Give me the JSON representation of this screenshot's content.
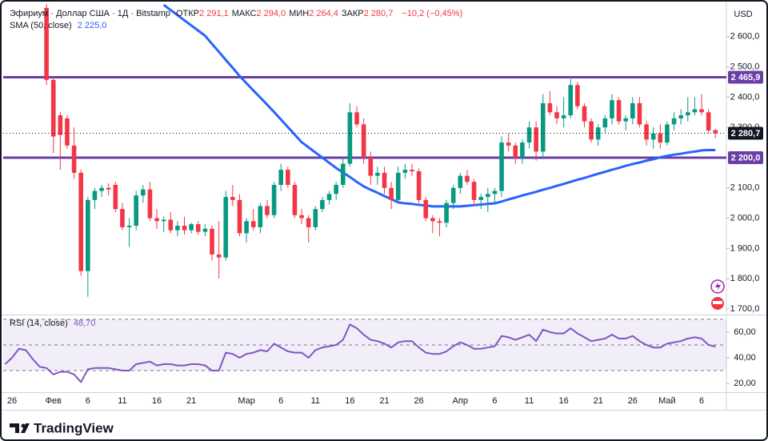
{
  "chart_data": {
    "type": "candlestick",
    "header": {
      "symbol": "Эфириум · Доллар США · 1Д · Bitstamp",
      "ohlc": [
        {
          "label": "ОТКР",
          "value": "2 291,1"
        },
        {
          "label": "МАКС",
          "value": "2 294,0"
        },
        {
          "label": "МИН",
          "value": "2 264,4"
        },
        {
          "label": "ЗАКР",
          "value": "2 280,7"
        }
      ],
      "change": "−10,2 (−0,45%)"
    },
    "currency": "USD",
    "brand": "TradingView",
    "categories": [
      null,
      "26",
      null,
      null,
      null,
      null,
      null,
      "Фев",
      null,
      null,
      null,
      null,
      "6",
      null,
      null,
      null,
      null,
      "11",
      null,
      null,
      null,
      null,
      "16",
      null,
      null,
      null,
      null,
      "21",
      null,
      null,
      null,
      null,
      null,
      null,
      null,
      "Мар",
      null,
      null,
      null,
      null,
      "6",
      null,
      null,
      null,
      null,
      "11",
      null,
      null,
      null,
      null,
      "16",
      null,
      null,
      null,
      null,
      "21",
      null,
      null,
      null,
      null,
      "26",
      null,
      null,
      null,
      null,
      null,
      "Апр",
      null,
      null,
      null,
      null,
      "6",
      null,
      null,
      null,
      null,
      "11",
      null,
      null,
      null,
      null,
      "16",
      null,
      null,
      null,
      null,
      "21",
      null,
      null,
      null,
      null,
      "26",
      null,
      null,
      null,
      null,
      "Май",
      null,
      null,
      null,
      null,
      "6",
      null,
      null
    ],
    "open": [
      null,
      null,
      null,
      null,
      null,
      null,
      2695,
      2457,
      2340,
      2330,
      2240,
      2150,
      1825,
      2060,
      2090,
      2100,
      2110,
      2030,
      1970,
      1975,
      2075,
      2095,
      2000,
      1990,
      1995,
      1960,
      1975,
      1960,
      1980,
      1955,
      1965,
      1880,
      1870,
      2070,
      2060,
      1950,
      1990,
      1970,
      2040,
      2010,
      2110,
      2160,
      2110,
      2010,
      2000,
      1970,
      2030,
      2060,
      2080,
      2110,
      2180,
      2350,
      2310,
      2200,
      2140,
      2150,
      2100,
      2060,
      2150,
      2160,
      2155,
      2060,
      2000,
      1990,
      1985,
      2050,
      2100,
      2140,
      2120,
      2060,
      2070,
      2080,
      2090,
      2250,
      2240,
      2200,
      2250,
      2300,
      2220,
      2380,
      2350,
      2330,
      2340,
      2440,
      2370,
      2320,
      2260,
      2300,
      2330,
      2390,
      2320,
      2330,
      2380,
      2310,
      2260,
      2280,
      2250,
      2310,
      2330,
      2340,
      2350,
      2360,
      2350,
      2291.1
    ],
    "high": [
      null,
      null,
      null,
      null,
      null,
      null,
      2710,
      2470,
      2350,
      2340,
      2300,
      2160,
      2070,
      2100,
      2110,
      2115,
      2120,
      2050,
      2000,
      2090,
      2110,
      2120,
      2030,
      2005,
      2020,
      1990,
      2005,
      1985,
      1990,
      1980,
      1975,
      1990,
      2090,
      2110,
      2080,
      2000,
      2030,
      2050,
      2060,
      2120,
      2180,
      2170,
      2120,
      2030,
      2010,
      2040,
      2070,
      2090,
      2120,
      2200,
      2380,
      2370,
      2330,
      2220,
      2170,
      2170,
      2120,
      2170,
      2180,
      2180,
      2165,
      2070,
      2010,
      2000,
      2060,
      2110,
      2150,
      2160,
      2130,
      2080,
      2100,
      2100,
      2270,
      2280,
      2250,
      2260,
      2320,
      2320,
      2410,
      2420,
      2370,
      2400,
      2460,
      2450,
      2380,
      2330,
      2310,
      2340,
      2410,
      2400,
      2340,
      2400,
      2400,
      2320,
      2300,
      2310,
      2320,
      2350,
      2360,
      2400,
      2400,
      2410,
      2360,
      2294
    ],
    "low": [
      null,
      null,
      null,
      null,
      null,
      null,
      2440,
      2215,
      2160,
      2230,
      2130,
      1810,
      1740,
      2030,
      2070,
      2075,
      2020,
      1960,
      1905,
      1960,
      2050,
      1990,
      1965,
      1955,
      1950,
      1940,
      1945,
      1950,
      1945,
      1940,
      1860,
      1800,
      1860,
      2040,
      1940,
      1920,
      1960,
      1950,
      2000,
      2000,
      2090,
      2100,
      2000,
      1980,
      1920,
      1960,
      2020,
      2045,
      2060,
      2100,
      2170,
      2300,
      2180,
      2110,
      2110,
      2080,
      2030,
      2050,
      2130,
      2140,
      2050,
      1990,
      1950,
      1940,
      1970,
      2030,
      2080,
      2110,
      2040,
      2030,
      2020,
      2050,
      2070,
      2220,
      2180,
      2180,
      2230,
      2190,
      2200,
      2340,
      2310,
      2300,
      2330,
      2360,
      2300,
      2250,
      2240,
      2280,
      2310,
      2310,
      2290,
      2310,
      2300,
      2240,
      2230,
      2230,
      2240,
      2290,
      2310,
      2320,
      2340,
      2340,
      2280,
      2264.4
    ],
    "close": [
      null,
      null,
      null,
      null,
      null,
      null,
      2457,
      2270,
      2275,
      2240,
      2150,
      1825,
      2060,
      2090,
      2100,
      2095,
      2030,
      1970,
      1975,
      2075,
      2095,
      2000,
      1990,
      1995,
      1960,
      1975,
      1960,
      1980,
      1955,
      1965,
      1880,
      1870,
      2070,
      2060,
      1950,
      1990,
      1970,
      2040,
      2010,
      2110,
      2160,
      2110,
      2010,
      2000,
      1970,
      2030,
      2060,
      2080,
      2110,
      2180,
      2350,
      2310,
      2200,
      2140,
      2150,
      2100,
      2060,
      2150,
      2160,
      2155,
      2060,
      2000,
      1990,
      1985,
      2050,
      2100,
      2140,
      2120,
      2060,
      2070,
      2080,
      2090,
      2250,
      2240,
      2200,
      2250,
      2300,
      2220,
      2380,
      2350,
      2330,
      2340,
      2440,
      2370,
      2320,
      2260,
      2300,
      2330,
      2390,
      2320,
      2330,
      2380,
      2310,
      2260,
      2280,
      2250,
      2310,
      2330,
      2340,
      2350,
      2360,
      2350,
      2290,
      2280.7
    ],
    "up_color": "#089981",
    "down_color": "#f23645",
    "last_price": {
      "value": 2280.7,
      "label": "2 280,7"
    },
    "sma": {
      "name": "SMA (50, close)",
      "value_label": "2 225,0",
      "color": "#2962ff",
      "values": [
        null,
        null,
        null,
        null,
        null,
        null,
        null,
        null,
        null,
        null,
        null,
        null,
        null,
        null,
        null,
        null,
        null,
        null,
        null,
        null,
        null,
        null,
        null,
        2705,
        2688,
        2671,
        2654,
        2637,
        2620,
        2603,
        2576,
        2550,
        2523,
        2497,
        2470,
        2446,
        2422,
        2399,
        2375,
        2351,
        2326,
        2301,
        2276,
        2251,
        2234,
        2217,
        2200,
        2183,
        2166,
        2151,
        2136,
        2120,
        2105,
        2094,
        2084,
        2073,
        2063,
        2052,
        2049,
        2047,
        2044,
        2042,
        2039,
        2039,
        2039,
        2039,
        2039,
        2041,
        2043,
        2045,
        2047,
        2049,
        2055,
        2062,
        2068,
        2075,
        2081,
        2087,
        2094,
        2100,
        2107,
        2113,
        2120,
        2127,
        2133,
        2140,
        2147,
        2153,
        2160,
        2166,
        2173,
        2179,
        2184,
        2190,
        2195,
        2201,
        2206,
        2210,
        2213,
        2217,
        2220,
        2224,
        2225,
        2225
      ]
    },
    "levels": [
      {
        "value": 2465.9,
        "label": "2 465,9"
      },
      {
        "value": 2200,
        "label": "2 200,0"
      }
    ],
    "level_color": "#6a3fa5",
    "ylim": [
      1684,
      2700
    ],
    "yticks": [
      {
        "value": 2600,
        "label": "2 600,0"
      },
      {
        "value": 2500,
        "label": "2 500,0"
      },
      {
        "value": 2400,
        "label": "2 400,0"
      },
      {
        "value": 2300,
        "label": "2 300,0"
      },
      {
        "value": 2100,
        "label": "2 100,0"
      },
      {
        "value": 2000,
        "label": "2 000,0"
      },
      {
        "value": 1900,
        "label": "1 900,0"
      },
      {
        "value": 1800,
        "label": "1 800,0"
      },
      {
        "value": 1700,
        "label": "1 700,0"
      }
    ],
    "grid": false,
    "rsi": {
      "name": "RSI (14, close)",
      "value_label": "48,70",
      "color": "#7e57c2",
      "values": [
        35,
        40,
        47,
        46,
        39,
        33,
        32,
        27,
        29,
        29,
        27,
        21,
        31,
        32,
        32,
        32,
        31,
        30,
        30,
        35,
        36,
        37,
        34,
        35,
        35,
        34,
        34,
        35,
        35,
        34,
        30,
        30,
        44,
        43,
        40,
        43,
        44,
        46,
        45,
        51,
        48,
        45,
        44,
        44,
        40,
        46,
        48,
        49,
        50,
        54,
        66,
        63,
        58,
        54,
        53,
        51,
        48,
        52,
        53,
        53,
        48,
        44,
        43,
        43,
        45,
        49,
        52,
        50,
        47,
        47,
        48,
        49,
        57,
        56,
        54,
        56,
        58,
        53,
        62,
        60,
        59,
        59,
        63,
        59,
        56,
        53,
        54,
        55,
        58,
        55,
        55,
        57,
        53,
        50,
        48,
        48,
        51,
        52,
        53,
        55,
        56,
        55,
        50,
        48.7
      ],
      "ylim": [
        14.4,
        70.6
      ],
      "bands": [
        70,
        50,
        30
      ],
      "yticks": [
        {
          "value": 60,
          "label": "60,00"
        },
        {
          "value": 40,
          "label": "40,00"
        },
        {
          "value": 20,
          "label": "20,00"
        }
      ]
    }
  }
}
